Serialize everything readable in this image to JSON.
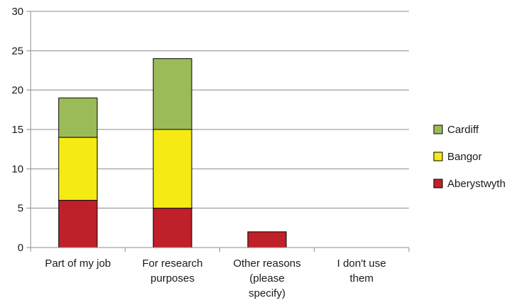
{
  "chart_data": {
    "type": "bar",
    "stacked": true,
    "categories": [
      [
        "Part of my job"
      ],
      [
        "For research",
        "purposes"
      ],
      [
        "Other reasons",
        "(please",
        "specify)"
      ],
      [
        "I don't use",
        "them"
      ]
    ],
    "series": [
      {
        "name": "Aberystwyth",
        "color": "#c0202a",
        "values": [
          6,
          5,
          2,
          0
        ]
      },
      {
        "name": "Bangor",
        "color": "#f5ea14",
        "values": [
          8,
          10,
          0,
          0
        ]
      },
      {
        "name": "Cardiff",
        "color": "#9bbb59",
        "values": [
          5,
          9,
          0,
          0
        ]
      }
    ],
    "ylim": [
      0,
      30
    ],
    "yticks": [
      0,
      5,
      10,
      15,
      20,
      25,
      30
    ],
    "grid": true,
    "legend_position": "right"
  }
}
